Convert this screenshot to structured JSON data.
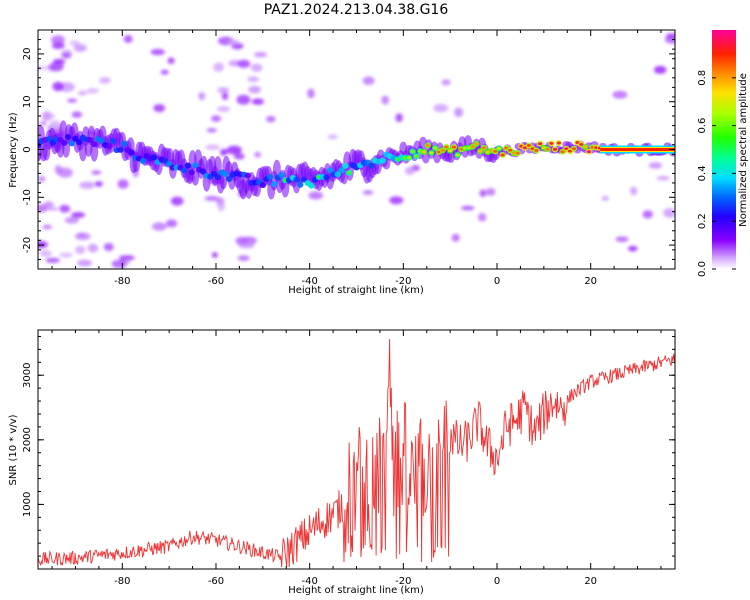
{
  "title": "PAZ1.2024.213.04.38.G16",
  "colors": {
    "snr_line": "#ee3333",
    "axis": "#000000",
    "spectrogram_min": "#ffffff"
  },
  "chart_data": [
    {
      "type": "heatmap",
      "xlabel": "Height of straight line (km)",
      "ylabel": "Frequency (Hz)",
      "xlim": [
        -98,
        38
      ],
      "ylim": [
        -25,
        25
      ],
      "xticks": [
        -80,
        -60,
        -40,
        -20,
        0,
        20
      ],
      "yticks": [
        -20,
        -10,
        0,
        10,
        20
      ],
      "grid": false,
      "colorbar": {
        "label": "Normalized spectral amplitude",
        "ticks": [
          "0.0",
          "0.2",
          "0.4",
          "0.6",
          "0.8"
        ],
        "range": [
          0,
          1
        ],
        "colormap": "gist_ncar-like (white-purple-blue-cyan-green-yellow-orange-red-magenta)"
      },
      "ridge": {
        "x": [
          -96,
          -90,
          -85,
          -80,
          -75,
          -70,
          -65,
          -60,
          -55,
          -50,
          -45,
          -40,
          -35,
          -30,
          -25,
          -20,
          -15,
          -10,
          -5,
          0,
          5,
          10,
          15,
          20,
          25,
          30,
          38
        ],
        "freq": [
          1.5,
          2,
          1.5,
          0.5,
          -2,
          -3,
          -4,
          -5,
          -6,
          -7,
          -6,
          -7,
          -5,
          -3.5,
          -2,
          -1,
          0,
          -0.5,
          0.5,
          -0.5,
          0,
          0.5,
          0.5,
          0.5,
          0,
          0,
          0
        ],
        "amplitude": [
          0.25,
          0.3,
          0.3,
          0.3,
          0.35,
          0.35,
          0.35,
          0.35,
          0.3,
          0.35,
          0.45,
          0.45,
          0.45,
          0.45,
          0.45,
          0.6,
          0.7,
          0.8,
          0.7,
          0.8,
          0.9,
          0.85,
          0.85,
          0.9,
          1.0,
          1.0,
          1.0
        ]
      }
    },
    {
      "type": "line",
      "xlabel": "Height of straight line (km)",
      "ylabel": "SNR (10 * v/v)",
      "xlim": [
        -98,
        38
      ],
      "ylim": [
        0,
        3700
      ],
      "xticks": [
        -80,
        -60,
        -40,
        -20,
        0,
        20
      ],
      "yticks": [
        1000,
        2000,
        3000
      ],
      "grid": false,
      "series": [
        {
          "x": [
            -98,
            -90,
            -80,
            -70,
            -65,
            -60,
            -50,
            -46,
            -42,
            -38,
            -34,
            -30,
            -28,
            -26,
            -24,
            -23,
            -22,
            -20,
            -18,
            -16,
            -14,
            -12,
            -10,
            -8,
            -6,
            -4,
            -2,
            0,
            2,
            4,
            6,
            8,
            10,
            12,
            14,
            16,
            20,
            25,
            30,
            38
          ],
          "y": [
            150,
            170,
            250,
            350,
            500,
            450,
            250,
            180,
            450,
            700,
            900,
            1300,
            1500,
            1400,
            1600,
            3700,
            1500,
            1800,
            1300,
            1500,
            1600,
            1800,
            2100,
            1900,
            2000,
            2300,
            1900,
            1700,
            2200,
            2300,
            2500,
            2100,
            2400,
            2600,
            2500,
            2700,
            2900,
            3000,
            3100,
            3250
          ]
        }
      ]
    }
  ]
}
